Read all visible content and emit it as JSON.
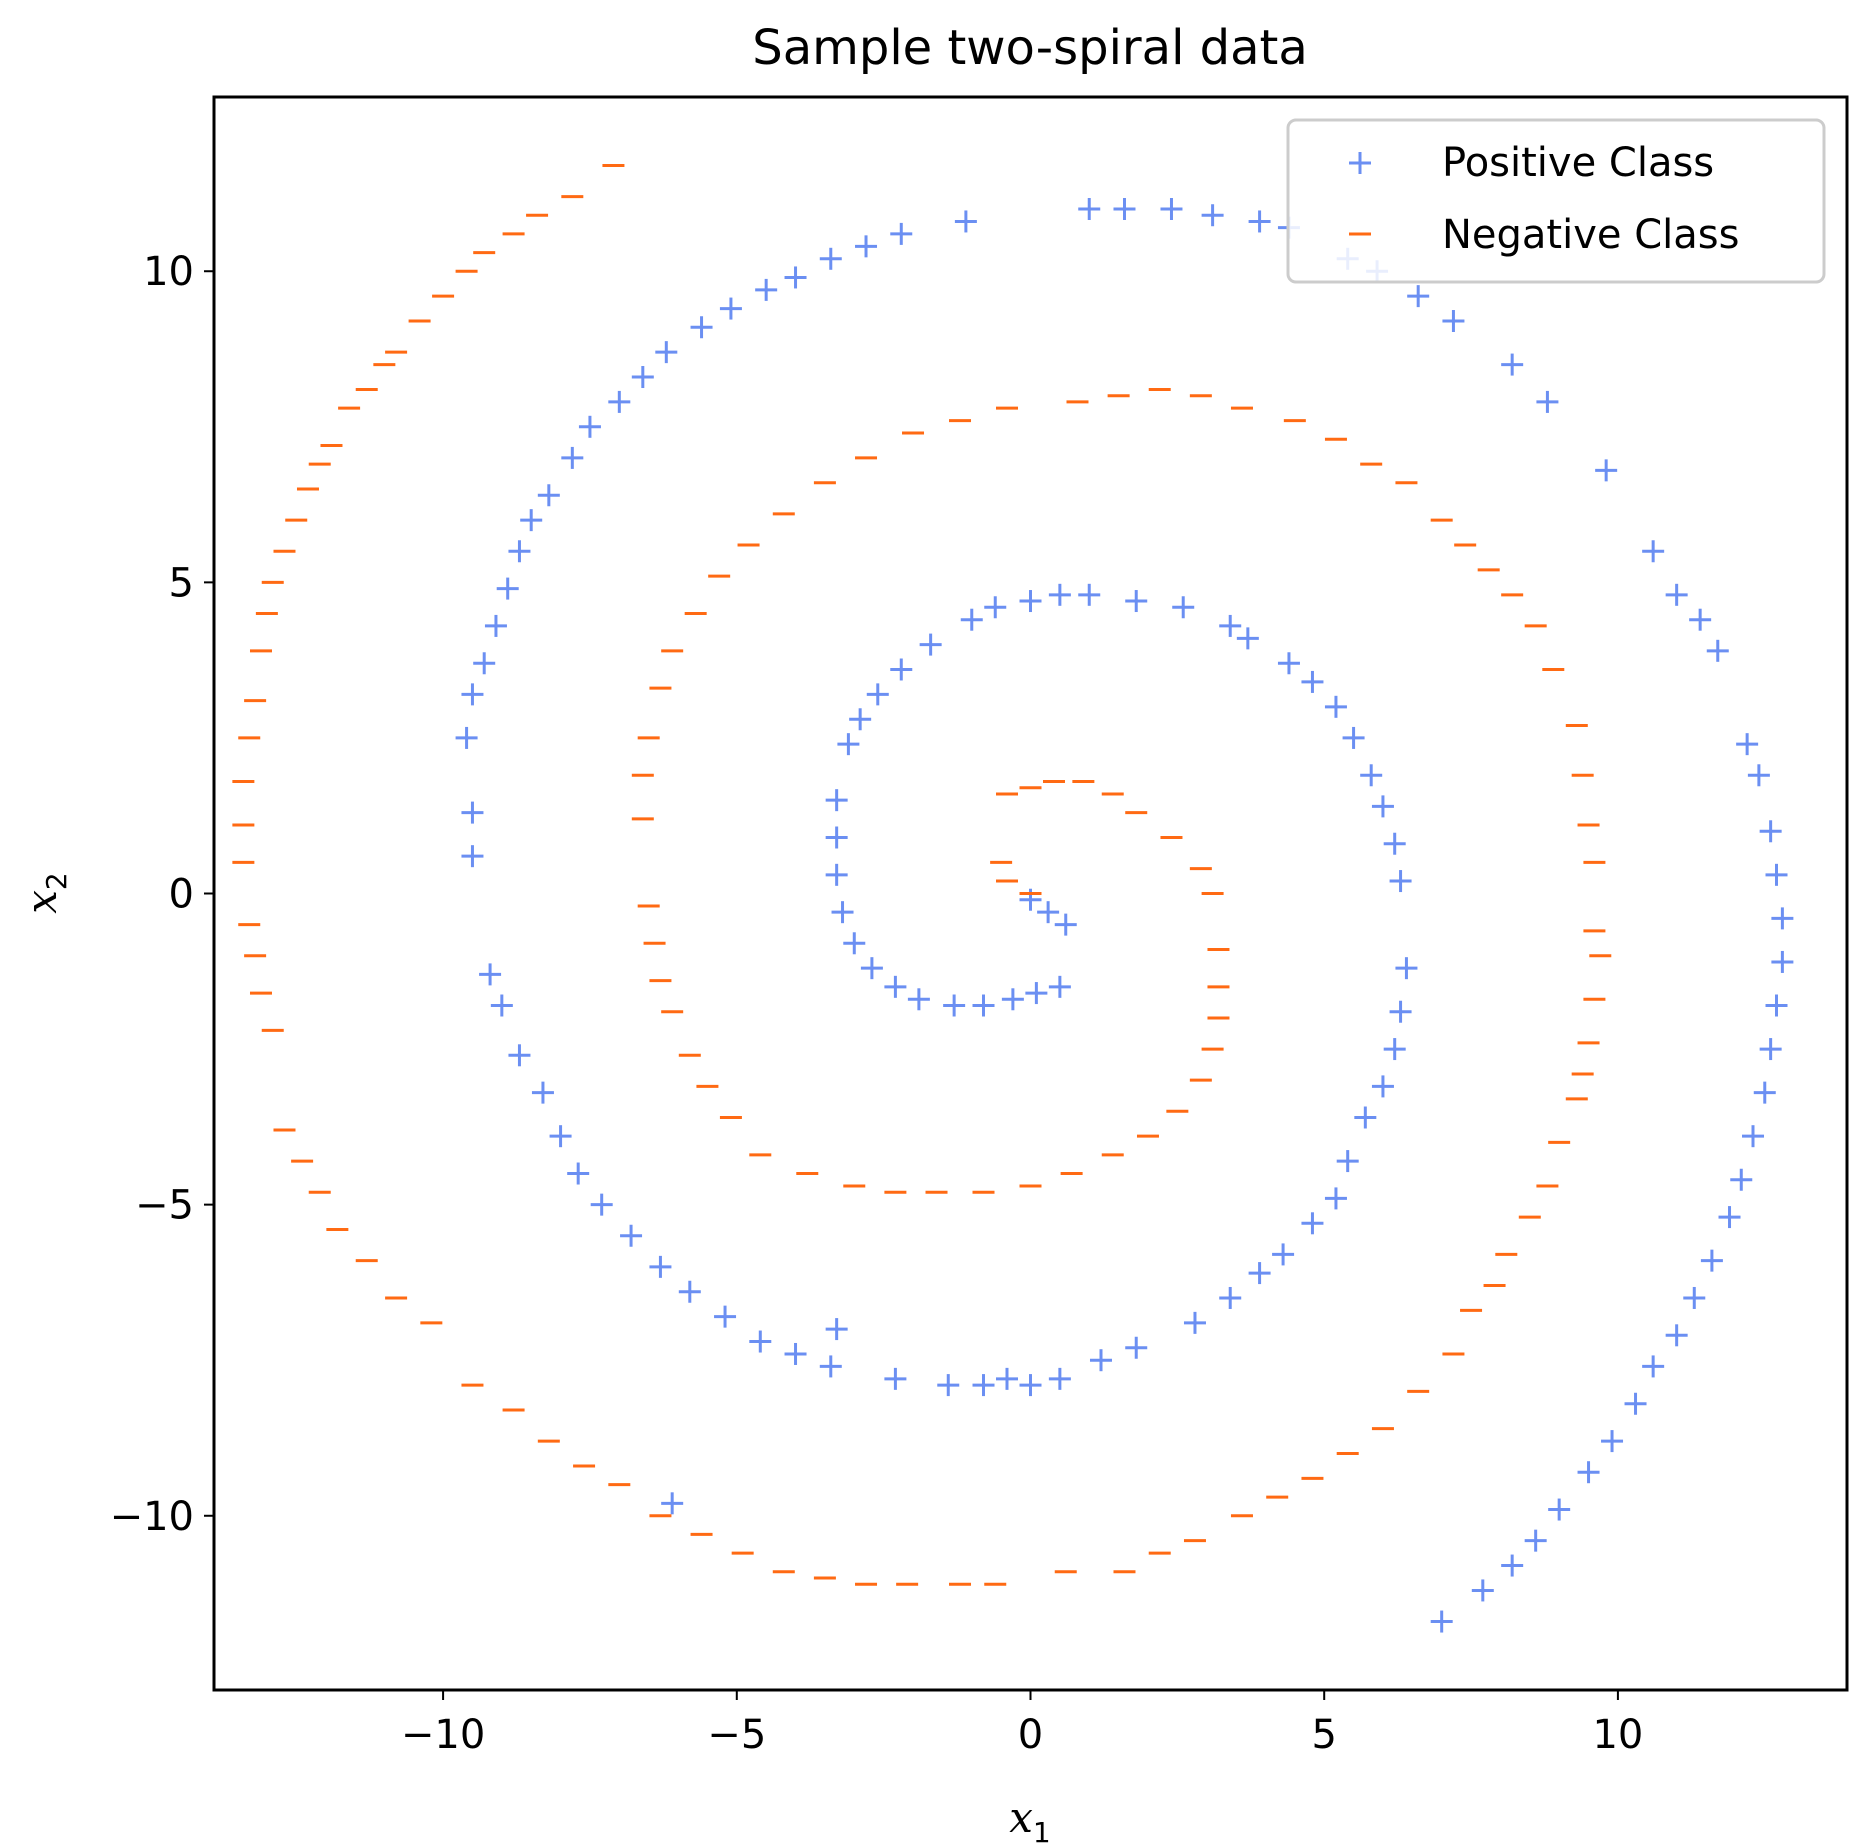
{
  "chart_data": {
    "type": "scatter",
    "title": "Sample two-spiral data",
    "xlabel": {
      "base": "x",
      "sub": "1"
    },
    "ylabel": {
      "base": "x",
      "sub": "2"
    },
    "xlim": [
      -13.9,
      13.9
    ],
    "ylim": [
      -12.8,
      12.8
    ],
    "xticks": [
      -10,
      -5,
      0,
      5,
      10
    ],
    "xtick_labels": [
      "−10",
      "−5",
      "0",
      "5",
      "10"
    ],
    "yticks": [
      -10,
      -5,
      0,
      5,
      10
    ],
    "ytick_labels": [
      "−10",
      "−5",
      "0",
      "5",
      "10"
    ],
    "grid": false,
    "legend": {
      "location": "upper right"
    },
    "series": [
      {
        "name": "Positive Class",
        "marker": "+",
        "color": "#6b8ff2",
        "points": [
          [
            7.0,
            -11.7
          ],
          [
            7.7,
            -11.2
          ],
          [
            8.2,
            -10.8
          ],
          [
            8.6,
            -10.4
          ],
          [
            9.0,
            -9.9
          ],
          [
            9.5,
            -9.3
          ],
          [
            9.9,
            -8.8
          ],
          [
            10.3,
            -8.2
          ],
          [
            10.6,
            -7.6
          ],
          [
            11.0,
            -7.1
          ],
          [
            11.3,
            -6.5
          ],
          [
            11.6,
            -5.9
          ],
          [
            11.9,
            -5.2
          ],
          [
            12.1,
            -4.6
          ],
          [
            12.3,
            -3.9
          ],
          [
            12.5,
            -3.2
          ],
          [
            12.6,
            -2.5
          ],
          [
            12.7,
            -1.8
          ],
          [
            12.8,
            -1.1
          ],
          [
            12.8,
            -0.4
          ],
          [
            12.7,
            0.3
          ],
          [
            12.6,
            1.0
          ],
          [
            12.4,
            1.9
          ],
          [
            12.2,
            2.4
          ],
          [
            11.7,
            3.9
          ],
          [
            11.4,
            4.4
          ],
          [
            11.0,
            4.8
          ],
          [
            10.6,
            5.5
          ],
          [
            9.8,
            6.8
          ],
          [
            8.8,
            7.9
          ],
          [
            8.2,
            8.5
          ],
          [
            7.2,
            9.2
          ],
          [
            6.6,
            9.6
          ],
          [
            5.9,
            10.0
          ],
          [
            5.4,
            10.2
          ],
          [
            4.4,
            10.7
          ],
          [
            3.9,
            10.8
          ],
          [
            3.1,
            10.9
          ],
          [
            2.4,
            11.0
          ],
          [
            1.6,
            11.0
          ],
          [
            1.0,
            11.0
          ],
          [
            -1.1,
            10.8
          ],
          [
            -2.2,
            10.6
          ],
          [
            -2.8,
            10.4
          ],
          [
            -3.4,
            10.2
          ],
          [
            -4.0,
            9.9
          ],
          [
            -4.5,
            9.7
          ],
          [
            -5.1,
            9.4
          ],
          [
            -5.6,
            9.1
          ],
          [
            -6.2,
            8.7
          ],
          [
            -6.6,
            8.3
          ],
          [
            -7.0,
            7.9
          ],
          [
            -7.5,
            7.5
          ],
          [
            -7.8,
            7.0
          ],
          [
            -8.2,
            6.4
          ],
          [
            -8.5,
            6.0
          ],
          [
            -8.7,
            5.5
          ],
          [
            -8.9,
            4.9
          ],
          [
            -9.1,
            4.3
          ],
          [
            -9.3,
            3.7
          ],
          [
            -9.5,
            3.2
          ],
          [
            -9.6,
            2.5
          ],
          [
            -9.5,
            1.3
          ],
          [
            -9.5,
            0.6
          ],
          [
            -9.2,
            -1.3
          ],
          [
            -9.0,
            -1.8
          ],
          [
            -8.7,
            -2.6
          ],
          [
            -8.3,
            -3.2
          ],
          [
            -8.0,
            -3.9
          ],
          [
            -7.7,
            -4.5
          ],
          [
            -7.3,
            -5.0
          ],
          [
            -6.8,
            -5.5
          ],
          [
            -6.3,
            -6.0
          ],
          [
            -5.8,
            -6.4
          ],
          [
            -5.2,
            -6.8
          ],
          [
            -4.6,
            -7.2
          ],
          [
            -4.0,
            -7.4
          ],
          [
            -3.4,
            -7.6
          ],
          [
            -2.3,
            -7.8
          ],
          [
            -1.4,
            -7.9
          ],
          [
            -0.8,
            -7.9
          ],
          [
            0.0,
            -7.9
          ],
          [
            0.5,
            -7.8
          ],
          [
            1.2,
            -7.5
          ],
          [
            1.8,
            -7.3
          ],
          [
            2.8,
            -6.9
          ],
          [
            3.4,
            -6.5
          ],
          [
            3.9,
            -6.1
          ],
          [
            4.3,
            -5.8
          ],
          [
            4.8,
            -5.3
          ],
          [
            5.2,
            -4.9
          ],
          [
            5.4,
            -4.3
          ],
          [
            5.7,
            -3.6
          ],
          [
            6.0,
            -3.1
          ],
          [
            6.2,
            -2.5
          ],
          [
            6.3,
            -1.9
          ],
          [
            6.4,
            -1.2
          ],
          [
            6.3,
            0.2
          ],
          [
            6.2,
            0.8
          ],
          [
            6.0,
            1.4
          ],
          [
            5.8,
            1.9
          ],
          [
            5.5,
            2.5
          ],
          [
            5.2,
            3.0
          ],
          [
            4.8,
            3.4
          ],
          [
            4.4,
            3.7
          ],
          [
            3.7,
            4.1
          ],
          [
            3.4,
            4.3
          ],
          [
            2.6,
            4.6
          ],
          [
            1.8,
            4.7
          ],
          [
            1.0,
            4.8
          ],
          [
            0.5,
            4.8
          ],
          [
            0.0,
            4.7
          ],
          [
            -0.6,
            4.6
          ],
          [
            -1.0,
            4.4
          ],
          [
            -1.7,
            4.0
          ],
          [
            -2.2,
            3.6
          ],
          [
            -2.6,
            3.2
          ],
          [
            -2.9,
            2.8
          ],
          [
            -3.1,
            2.4
          ],
          [
            -3.3,
            1.5
          ],
          [
            -3.3,
            0.9
          ],
          [
            -3.3,
            0.3
          ],
          [
            -3.2,
            -0.3
          ],
          [
            -3.0,
            -0.8
          ],
          [
            -2.7,
            -1.2
          ],
          [
            -2.3,
            -1.5
          ],
          [
            -1.9,
            -1.7
          ],
          [
            -1.3,
            -1.8
          ],
          [
            -0.8,
            -1.8
          ],
          [
            -0.3,
            -1.7
          ],
          [
            0.1,
            -1.6
          ],
          [
            0.5,
            -1.5
          ],
          [
            0.6,
            -0.5
          ],
          [
            0.3,
            -0.3
          ],
          [
            0.0,
            -0.1
          ],
          [
            -6.1,
            -9.8
          ],
          [
            -3.3,
            -7.0
          ],
          [
            -0.4,
            -7.8
          ]
        ]
      },
      {
        "name": "Negative Class",
        "marker": "_",
        "color": "#ff6a13",
        "points": [
          [
            -7.1,
            11.7
          ],
          [
            -7.8,
            11.2
          ],
          [
            -8.4,
            10.9
          ],
          [
            -8.8,
            10.6
          ],
          [
            -9.3,
            10.3
          ],
          [
            -9.6,
            10.0
          ],
          [
            -10.0,
            9.6
          ],
          [
            -10.4,
            9.2
          ],
          [
            -10.8,
            8.7
          ],
          [
            -11.0,
            8.5
          ],
          [
            -11.3,
            8.1
          ],
          [
            -11.6,
            7.8
          ],
          [
            -11.9,
            7.2
          ],
          [
            -12.1,
            6.9
          ],
          [
            -12.3,
            6.5
          ],
          [
            -12.5,
            6.0
          ],
          [
            -12.7,
            5.5
          ],
          [
            -12.9,
            5.0
          ],
          [
            -13.0,
            4.5
          ],
          [
            -13.1,
            3.9
          ],
          [
            -13.2,
            3.1
          ],
          [
            -13.3,
            2.5
          ],
          [
            -13.4,
            1.8
          ],
          [
            -13.4,
            1.1
          ],
          [
            -13.4,
            0.5
          ],
          [
            -13.3,
            -0.5
          ],
          [
            -13.2,
            -1.0
          ],
          [
            -13.1,
            -1.6
          ],
          [
            -12.9,
            -2.2
          ],
          [
            -12.7,
            -3.8
          ],
          [
            -12.4,
            -4.3
          ],
          [
            -12.1,
            -4.8
          ],
          [
            -11.8,
            -5.4
          ],
          [
            -11.3,
            -5.9
          ],
          [
            -10.8,
            -6.5
          ],
          [
            -10.2,
            -6.9
          ],
          [
            -9.5,
            -7.9
          ],
          [
            -8.8,
            -8.3
          ],
          [
            -8.2,
            -8.8
          ],
          [
            -7.6,
            -9.2
          ],
          [
            -7.0,
            -9.5
          ],
          [
            -6.3,
            -10.0
          ],
          [
            -5.6,
            -10.3
          ],
          [
            -4.9,
            -10.6
          ],
          [
            -4.2,
            -10.9
          ],
          [
            -3.5,
            -11.0
          ],
          [
            -2.8,
            -11.1
          ],
          [
            -2.1,
            -11.1
          ],
          [
            -1.2,
            -11.1
          ],
          [
            -0.6,
            -11.1
          ],
          [
            0.6,
            -10.9
          ],
          [
            1.6,
            -10.9
          ],
          [
            2.2,
            -10.6
          ],
          [
            2.8,
            -10.4
          ],
          [
            3.6,
            -10.0
          ],
          [
            4.2,
            -9.7
          ],
          [
            4.8,
            -9.4
          ],
          [
            5.4,
            -9.0
          ],
          [
            6.0,
            -8.6
          ],
          [
            6.6,
            -8.0
          ],
          [
            7.2,
            -7.4
          ],
          [
            7.5,
            -6.7
          ],
          [
            7.9,
            -6.3
          ],
          [
            8.1,
            -5.8
          ],
          [
            8.5,
            -5.2
          ],
          [
            8.8,
            -4.7
          ],
          [
            9.0,
            -4.0
          ],
          [
            9.3,
            -3.3
          ],
          [
            9.4,
            -2.9
          ],
          [
            9.5,
            -2.4
          ],
          [
            9.6,
            -1.7
          ],
          [
            9.7,
            -1.0
          ],
          [
            9.6,
            -0.6
          ],
          [
            9.6,
            0.5
          ],
          [
            9.5,
            1.1
          ],
          [
            9.4,
            1.9
          ],
          [
            9.3,
            2.7
          ],
          [
            8.9,
            3.6
          ],
          [
            8.6,
            4.3
          ],
          [
            8.2,
            4.8
          ],
          [
            7.8,
            5.2
          ],
          [
            7.4,
            5.6
          ],
          [
            7.0,
            6.0
          ],
          [
            6.4,
            6.6
          ],
          [
            5.8,
            6.9
          ],
          [
            5.2,
            7.3
          ],
          [
            4.5,
            7.6
          ],
          [
            3.6,
            7.8
          ],
          [
            2.9,
            8.0
          ],
          [
            2.2,
            8.1
          ],
          [
            1.5,
            8.0
          ],
          [
            0.8,
            7.9
          ],
          [
            -0.4,
            7.8
          ],
          [
            -1.2,
            7.6
          ],
          [
            -2.0,
            7.4
          ],
          [
            -2.8,
            7.0
          ],
          [
            -3.5,
            6.6
          ],
          [
            -4.2,
            6.1
          ],
          [
            -4.8,
            5.6
          ],
          [
            -5.3,
            5.1
          ],
          [
            -5.7,
            4.5
          ],
          [
            -6.1,
            3.9
          ],
          [
            -6.3,
            3.3
          ],
          [
            -6.5,
            2.5
          ],
          [
            -6.6,
            1.9
          ],
          [
            -6.6,
            1.2
          ],
          [
            -6.5,
            -0.2
          ],
          [
            -6.4,
            -0.8
          ],
          [
            -6.3,
            -1.4
          ],
          [
            -6.1,
            -1.9
          ],
          [
            -5.8,
            -2.6
          ],
          [
            -5.5,
            -3.1
          ],
          [
            -5.1,
            -3.6
          ],
          [
            -4.6,
            -4.2
          ],
          [
            -3.8,
            -4.5
          ],
          [
            -3.0,
            -4.7
          ],
          [
            -2.3,
            -4.8
          ],
          [
            -1.6,
            -4.8
          ],
          [
            -0.8,
            -4.8
          ],
          [
            0.0,
            -4.7
          ],
          [
            0.7,
            -4.5
          ],
          [
            1.4,
            -4.2
          ],
          [
            2.0,
            -3.9
          ],
          [
            2.5,
            -3.5
          ],
          [
            2.9,
            -3.0
          ],
          [
            3.1,
            -2.5
          ],
          [
            3.2,
            -2.0
          ],
          [
            3.2,
            -1.5
          ],
          [
            3.2,
            -0.9
          ],
          [
            3.1,
            0.0
          ],
          [
            2.9,
            0.4
          ],
          [
            2.4,
            0.9
          ],
          [
            1.8,
            1.3
          ],
          [
            1.4,
            1.6
          ],
          [
            0.9,
            1.8
          ],
          [
            0.4,
            1.8
          ],
          [
            0.0,
            1.7
          ],
          [
            -0.4,
            1.6
          ],
          [
            -0.5,
            0.5
          ],
          [
            -0.4,
            0.2
          ],
          [
            0.0,
            0.0
          ]
        ]
      }
    ]
  }
}
